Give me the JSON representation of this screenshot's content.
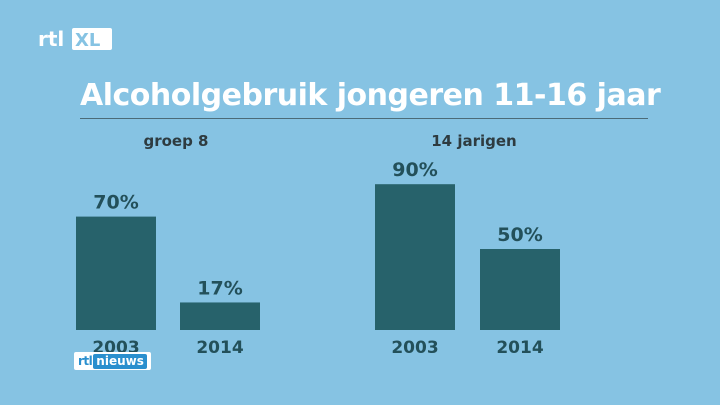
{
  "logo": {
    "text": "rtl XL"
  },
  "header": {
    "title": "Alcoholgebruik jongeren 11-16 jaar"
  },
  "badge": {
    "rtl": "rtl",
    "nieuws": "nieuws"
  },
  "colors": {
    "background": "#86c3e3",
    "bar": "#27626b",
    "title": "#ffffff"
  },
  "chart_data": [
    {
      "type": "bar",
      "title": "groep 8",
      "categories": [
        "2003",
        "2014"
      ],
      "values": [
        70,
        17
      ],
      "value_labels": [
        "70%",
        "17%"
      ],
      "unit": "%",
      "ylim": [
        0,
        100
      ]
    },
    {
      "type": "bar",
      "title": "14 jarigen",
      "categories": [
        "2003",
        "2014"
      ],
      "values": [
        90,
        50
      ],
      "value_labels": [
        "90%",
        "50%"
      ],
      "unit": "%",
      "ylim": [
        0,
        100
      ]
    }
  ]
}
